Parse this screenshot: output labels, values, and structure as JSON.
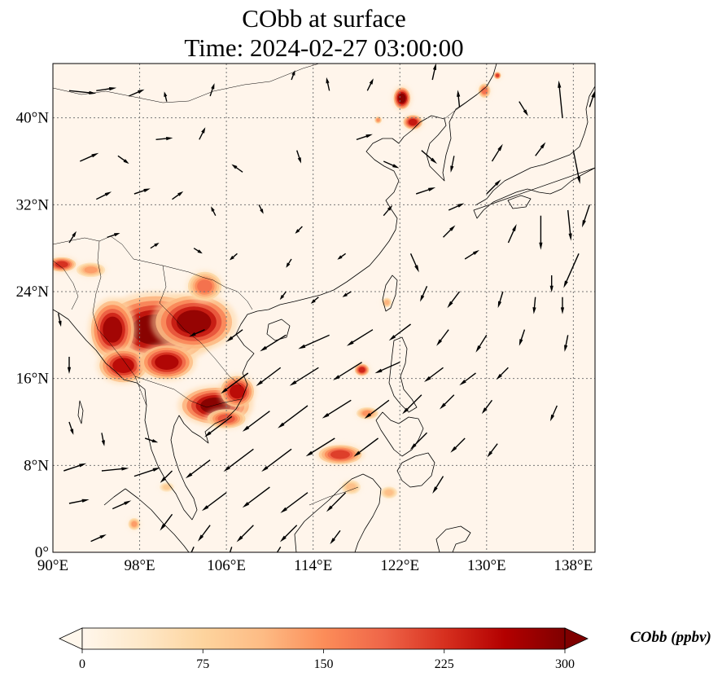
{
  "title": {
    "line1": "CObb at surface",
    "line2": "Time: 2024-02-27 03:00:00"
  },
  "map": {
    "extent": {
      "lon_min": 90,
      "lon_max": 140,
      "lat_min": 0,
      "lat_max": 45
    },
    "lon_ticks": [
      {
        "value": 90,
        "label": "90°E"
      },
      {
        "value": 98,
        "label": "98°E"
      },
      {
        "value": 106,
        "label": "106°E"
      },
      {
        "value": 114,
        "label": "114°E"
      },
      {
        "value": 122,
        "label": "122°E"
      },
      {
        "value": 130,
        "label": "130°E"
      },
      {
        "value": 138,
        "label": "138°E"
      }
    ],
    "lat_ticks": [
      {
        "value": 0,
        "label": "0°"
      },
      {
        "value": 8,
        "label": "8°N"
      },
      {
        "value": 16,
        "label": "16°N"
      },
      {
        "value": 24,
        "label": "24°N"
      },
      {
        "value": 32,
        "label": "32°N"
      },
      {
        "value": 40,
        "label": "40°N"
      }
    ],
    "gridlines": "on",
    "field_name": "CObb",
    "field_units": "ppbv",
    "background_color": "#fff5eb",
    "hotspots": [
      {
        "lon": 99.5,
        "lat": 20.5,
        "r_lon": 4.5,
        "r_lat": 2.8,
        "value": 300
      },
      {
        "lon": 103.0,
        "lat": 21.2,
        "r_lon": 3.2,
        "r_lat": 2.2,
        "value": 290
      },
      {
        "lon": 95.5,
        "lat": 20.5,
        "r_lon": 1.8,
        "r_lat": 2.4,
        "value": 280
      },
      {
        "lon": 96.5,
        "lat": 17.2,
        "r_lon": 2.0,
        "r_lat": 1.4,
        "value": 260
      },
      {
        "lon": 100.5,
        "lat": 17.5,
        "r_lon": 2.2,
        "r_lat": 1.4,
        "value": 270
      },
      {
        "lon": 104.0,
        "lat": 24.5,
        "r_lon": 1.4,
        "r_lat": 1.2,
        "value": 180
      },
      {
        "lon": 105.0,
        "lat": 13.5,
        "r_lon": 2.8,
        "r_lat": 1.5,
        "value": 300
      },
      {
        "lon": 107.0,
        "lat": 14.8,
        "r_lon": 1.4,
        "r_lat": 1.3,
        "value": 260
      },
      {
        "lon": 106.0,
        "lat": 12.3,
        "r_lon": 1.6,
        "r_lat": 0.8,
        "value": 200
      },
      {
        "lon": 90.8,
        "lat": 26.5,
        "r_lon": 1.2,
        "r_lat": 0.6,
        "value": 230
      },
      {
        "lon": 93.5,
        "lat": 26.0,
        "r_lon": 1.2,
        "r_lat": 0.6,
        "value": 140
      },
      {
        "lon": 122.2,
        "lat": 41.8,
        "r_lon": 0.7,
        "r_lat": 0.9,
        "value": 300
      },
      {
        "lon": 123.2,
        "lat": 39.6,
        "r_lon": 0.8,
        "r_lat": 0.6,
        "value": 250
      },
      {
        "lon": 120.0,
        "lat": 39.8,
        "r_lon": 0.3,
        "r_lat": 0.3,
        "value": 150
      },
      {
        "lon": 129.8,
        "lat": 42.5,
        "r_lon": 0.5,
        "r_lat": 0.6,
        "value": 180
      },
      {
        "lon": 131.0,
        "lat": 43.9,
        "r_lon": 0.3,
        "r_lat": 0.3,
        "value": 220
      },
      {
        "lon": 118.5,
        "lat": 16.8,
        "r_lon": 0.6,
        "r_lat": 0.5,
        "value": 240
      },
      {
        "lon": 116.5,
        "lat": 9.0,
        "r_lon": 1.8,
        "r_lat": 0.8,
        "value": 220
      },
      {
        "lon": 119.0,
        "lat": 12.8,
        "r_lon": 0.9,
        "r_lat": 0.5,
        "value": 150
      },
      {
        "lon": 117.5,
        "lat": 6.0,
        "r_lon": 0.8,
        "r_lat": 0.6,
        "value": 110
      },
      {
        "lon": 121.0,
        "lat": 5.5,
        "r_lon": 0.7,
        "r_lat": 0.5,
        "value": 110
      },
      {
        "lon": 97.5,
        "lat": 2.6,
        "r_lon": 0.5,
        "r_lat": 0.5,
        "value": 140
      },
      {
        "lon": 100.5,
        "lat": 6.0,
        "r_lon": 0.6,
        "r_lat": 0.4,
        "value": 90
      },
      {
        "lon": 120.8,
        "lat": 23.0,
        "r_lon": 0.4,
        "r_lat": 0.4,
        "value": 120
      }
    ],
    "wind_vectors": [
      {
        "lon": 91.5,
        "lat": 42.5,
        "u": 1.0,
        "v": -0.1,
        "s": 0.8
      },
      {
        "lon": 94.0,
        "lat": 42.5,
        "u": 0.7,
        "v": 0.1,
        "s": 0.6
      },
      {
        "lon": 97.0,
        "lat": 42.0,
        "u": 0.7,
        "v": 0.3,
        "s": 0.5
      },
      {
        "lon": 100.5,
        "lat": 41.5,
        "u": -0.2,
        "v": 0.8,
        "s": 0.3
      },
      {
        "lon": 104.5,
        "lat": 42.0,
        "u": 0.3,
        "v": 0.9,
        "s": 0.4
      },
      {
        "lon": 112.0,
        "lat": 43.5,
        "u": 0.3,
        "v": 0.8,
        "s": 0.3
      },
      {
        "lon": 115.5,
        "lat": 42.5,
        "u": -0.2,
        "v": 0.9,
        "s": 0.4
      },
      {
        "lon": 119.0,
        "lat": 42.5,
        "u": 0.4,
        "v": 0.8,
        "s": 0.4
      },
      {
        "lon": 125.0,
        "lat": 43.5,
        "u": 0.2,
        "v": 0.9,
        "s": 0.5
      },
      {
        "lon": 127.5,
        "lat": 41.0,
        "u": -0.1,
        "v": 1.0,
        "s": 0.5
      },
      {
        "lon": 133.0,
        "lat": 41.5,
        "u": 0.5,
        "v": -0.8,
        "s": 0.5
      },
      {
        "lon": 137.0,
        "lat": 40.0,
        "u": -0.1,
        "v": 1.0,
        "s": 1.1
      },
      {
        "lon": 139.5,
        "lat": 41.0,
        "u": 0.3,
        "v": 0.9,
        "s": 0.5
      },
      {
        "lon": 92.5,
        "lat": 36.0,
        "u": 0.9,
        "v": 0.4,
        "s": 0.6
      },
      {
        "lon": 96.0,
        "lat": 36.5,
        "u": 0.7,
        "v": -0.5,
        "s": 0.4
      },
      {
        "lon": 99.5,
        "lat": 38.0,
        "u": 1.0,
        "v": 0.1,
        "s": 0.5
      },
      {
        "lon": 103.5,
        "lat": 38.0,
        "u": 0.4,
        "v": 0.8,
        "s": 0.4
      },
      {
        "lon": 107.5,
        "lat": 35.0,
        "u": -0.7,
        "v": 0.5,
        "s": 0.4
      },
      {
        "lon": 112.5,
        "lat": 37.0,
        "u": 0.3,
        "v": -0.9,
        "s": 0.4
      },
      {
        "lon": 118.0,
        "lat": 38.0,
        "u": 0.9,
        "v": 0.3,
        "s": 0.5
      },
      {
        "lon": 120.5,
        "lat": 36.0,
        "u": 0.9,
        "v": -0.4,
        "s": 0.5
      },
      {
        "lon": 124.0,
        "lat": 37.0,
        "u": 0.7,
        "v": -0.6,
        "s": 0.6
      },
      {
        "lon": 127.0,
        "lat": 36.5,
        "u": -0.2,
        "v": -1.0,
        "s": 0.5
      },
      {
        "lon": 130.5,
        "lat": 36.0,
        "u": 0.5,
        "v": 0.8,
        "s": 0.6
      },
      {
        "lon": 134.5,
        "lat": 36.5,
        "u": 0.6,
        "v": 0.8,
        "s": 0.5
      },
      {
        "lon": 138.0,
        "lat": 37.0,
        "u": 0.2,
        "v": -1.0,
        "s": 1.0
      },
      {
        "lon": 94.0,
        "lat": 32.5,
        "u": 0.8,
        "v": 0.4,
        "s": 0.5
      },
      {
        "lon": 97.5,
        "lat": 33.0,
        "u": 0.9,
        "v": 0.3,
        "s": 0.5
      },
      {
        "lon": 101.0,
        "lat": 32.5,
        "u": 0.7,
        "v": 0.5,
        "s": 0.4
      },
      {
        "lon": 105.0,
        "lat": 31.0,
        "u": -0.4,
        "v": 0.8,
        "s": 0.3
      },
      {
        "lon": 109.0,
        "lat": 32.0,
        "u": 0.4,
        "v": -0.8,
        "s": 0.3
      },
      {
        "lon": 113.0,
        "lat": 30.0,
        "u": -0.6,
        "v": -0.6,
        "s": 0.3
      },
      {
        "lon": 120.5,
        "lat": 31.0,
        "u": 0.6,
        "v": 0.7,
        "s": 0.4
      },
      {
        "lon": 123.5,
        "lat": 33.0,
        "u": 0.9,
        "v": 0.3,
        "s": 0.6
      },
      {
        "lon": 126.5,
        "lat": 31.5,
        "u": 0.9,
        "v": 0.4,
        "s": 0.5
      },
      {
        "lon": 130.0,
        "lat": 33.0,
        "u": 0.7,
        "v": 0.7,
        "s": 0.6
      },
      {
        "lon": 135.0,
        "lat": 31.0,
        "u": 0.0,
        "v": -1.0,
        "s": 1.0
      },
      {
        "lon": 137.5,
        "lat": 31.5,
        "u": 0.1,
        "v": -1.0,
        "s": 0.9
      },
      {
        "lon": 139.5,
        "lat": 32.0,
        "u": -0.3,
        "v": -0.9,
        "s": 0.7
      },
      {
        "lon": 91.5,
        "lat": 28.5,
        "u": 0.5,
        "v": 0.8,
        "s": 0.4
      },
      {
        "lon": 95.0,
        "lat": 29.0,
        "u": 0.9,
        "v": 0.3,
        "s": 0.4
      },
      {
        "lon": 99.0,
        "lat": 28.0,
        "u": 0.8,
        "v": 0.5,
        "s": 0.3
      },
      {
        "lon": 103.0,
        "lat": 28.0,
        "u": 0.8,
        "v": -0.5,
        "s": 0.3
      },
      {
        "lon": 107.0,
        "lat": 27.5,
        "u": -0.7,
        "v": -0.6,
        "s": 0.3
      },
      {
        "lon": 112.0,
        "lat": 27.0,
        "u": -0.5,
        "v": -0.8,
        "s": 0.3
      },
      {
        "lon": 117.0,
        "lat": 27.5,
        "u": -0.7,
        "v": -0.5,
        "s": 0.3
      },
      {
        "lon": 123.0,
        "lat": 27.5,
        "u": 0.4,
        "v": -0.9,
        "s": 0.6
      },
      {
        "lon": 126.0,
        "lat": 29.0,
        "u": 0.7,
        "v": 0.7,
        "s": 0.5
      },
      {
        "lon": 128.0,
        "lat": 27.0,
        "u": 0.8,
        "v": 0.5,
        "s": 0.5
      },
      {
        "lon": 132.0,
        "lat": 28.5,
        "u": 0.4,
        "v": 0.9,
        "s": 0.6
      },
      {
        "lon": 136.0,
        "lat": 25.5,
        "u": 0.0,
        "v": -1.0,
        "s": 0.5
      },
      {
        "lon": 138.5,
        "lat": 27.5,
        "u": -0.4,
        "v": -0.9,
        "s": 1.1
      },
      {
        "lon": 90.5,
        "lat": 22.0,
        "u": 0.2,
        "v": -1.0,
        "s": 0.4
      },
      {
        "lon": 111.5,
        "lat": 24.0,
        "u": -0.6,
        "v": -0.8,
        "s": 0.3
      },
      {
        "lon": 114.5,
        "lat": 23.5,
        "u": -0.7,
        "v": -0.6,
        "s": 0.3
      },
      {
        "lon": 117.5,
        "lat": 24.0,
        "u": -0.8,
        "v": -0.5,
        "s": 0.3
      },
      {
        "lon": 124.5,
        "lat": 24.5,
        "u": -0.4,
        "v": -0.9,
        "s": 0.5
      },
      {
        "lon": 127.5,
        "lat": 24.0,
        "u": -0.6,
        "v": -0.8,
        "s": 0.6
      },
      {
        "lon": 131.5,
        "lat": 24.0,
        "u": -0.3,
        "v": -1.0,
        "s": 0.5
      },
      {
        "lon": 134.5,
        "lat": 23.5,
        "u": -0.1,
        "v": -1.0,
        "s": 0.5
      },
      {
        "lon": 137.0,
        "lat": 23.5,
        "u": 0.0,
        "v": -1.0,
        "s": 0.5
      },
      {
        "lon": 104.0,
        "lat": 20.5,
        "u": -0.9,
        "v": -0.4,
        "s": 0.5
      },
      {
        "lon": 107.5,
        "lat": 20.5,
        "u": -0.8,
        "v": -0.6,
        "s": 0.6
      },
      {
        "lon": 111.5,
        "lat": 20.0,
        "u": -0.8,
        "v": -0.5,
        "s": 0.9
      },
      {
        "lon": 115.5,
        "lat": 20.0,
        "u": -0.9,
        "v": -0.4,
        "s": 1.0
      },
      {
        "lon": 119.5,
        "lat": 20.5,
        "u": -0.8,
        "v": -0.5,
        "s": 0.9
      },
      {
        "lon": 123.0,
        "lat": 21.0,
        "u": -0.8,
        "v": -0.6,
        "s": 0.8
      },
      {
        "lon": 126.5,
        "lat": 20.5,
        "u": -0.6,
        "v": -0.8,
        "s": 0.6
      },
      {
        "lon": 130.0,
        "lat": 20.0,
        "u": -0.5,
        "v": -0.8,
        "s": 0.6
      },
      {
        "lon": 133.5,
        "lat": 20.5,
        "u": -0.3,
        "v": -0.9,
        "s": 0.5
      },
      {
        "lon": 137.5,
        "lat": 20.0,
        "u": -0.2,
        "v": -1.0,
        "s": 0.5
      },
      {
        "lon": 91.5,
        "lat": 18.0,
        "u": 0.0,
        "v": -1.0,
        "s": 0.5
      },
      {
        "lon": 108.0,
        "lat": 16.5,
        "u": -0.8,
        "v": -0.6,
        "s": 1.0
      },
      {
        "lon": 111.0,
        "lat": 17.0,
        "u": -0.8,
        "v": -0.6,
        "s": 0.9
      },
      {
        "lon": 114.5,
        "lat": 17.0,
        "u": -0.8,
        "v": -0.5,
        "s": 1.0
      },
      {
        "lon": 118.5,
        "lat": 17.5,
        "u": -0.8,
        "v": -0.5,
        "s": 1.0
      },
      {
        "lon": 122.0,
        "lat": 17.5,
        "u": -0.9,
        "v": -0.4,
        "s": 0.8
      },
      {
        "lon": 126.0,
        "lat": 17.0,
        "u": -0.8,
        "v": -0.6,
        "s": 0.7
      },
      {
        "lon": 129.0,
        "lat": 16.5,
        "u": -0.8,
        "v": -0.6,
        "s": 0.6
      },
      {
        "lon": 132.0,
        "lat": 17.0,
        "u": -0.7,
        "v": -0.7,
        "s": 0.5
      },
      {
        "lon": 106.5,
        "lat": 12.5,
        "u": -0.8,
        "v": -0.6,
        "s": 1.0
      },
      {
        "lon": 110.0,
        "lat": 13.0,
        "u": -0.8,
        "v": -0.6,
        "s": 1.0
      },
      {
        "lon": 113.5,
        "lat": 13.5,
        "u": -0.8,
        "v": -0.6,
        "s": 1.1
      },
      {
        "lon": 117.5,
        "lat": 14.0,
        "u": -0.8,
        "v": -0.5,
        "s": 1.0
      },
      {
        "lon": 121.0,
        "lat": 14.0,
        "u": -0.8,
        "v": -0.6,
        "s": 0.9
      },
      {
        "lon": 124.0,
        "lat": 14.5,
        "u": -0.7,
        "v": -0.7,
        "s": 0.8
      },
      {
        "lon": 127.0,
        "lat": 14.5,
        "u": -0.7,
        "v": -0.7,
        "s": 0.6
      },
      {
        "lon": 130.5,
        "lat": 14.0,
        "u": -0.6,
        "v": -0.8,
        "s": 0.5
      },
      {
        "lon": 136.5,
        "lat": 13.5,
        "u": -0.4,
        "v": -0.9,
        "s": 0.5
      },
      {
        "lon": 91.5,
        "lat": 12.0,
        "u": 0.3,
        "v": -0.9,
        "s": 0.4
      },
      {
        "lon": 94.5,
        "lat": 11.0,
        "u": 0.2,
        "v": -1.0,
        "s": 0.4
      },
      {
        "lon": 98.5,
        "lat": 10.5,
        "u": 0.9,
        "v": -0.3,
        "s": 0.4
      },
      {
        "lon": 104.5,
        "lat": 8.5,
        "u": -0.8,
        "v": -0.6,
        "s": 0.9
      },
      {
        "lon": 108.5,
        "lat": 9.5,
        "u": -0.8,
        "v": -0.6,
        "s": 1.1
      },
      {
        "lon": 112.0,
        "lat": 9.5,
        "u": -0.8,
        "v": -0.6,
        "s": 1.1
      },
      {
        "lon": 116.0,
        "lat": 10.5,
        "u": -0.8,
        "v": -0.5,
        "s": 1.0
      },
      {
        "lon": 120.0,
        "lat": 10.5,
        "u": -0.8,
        "v": -0.6,
        "s": 0.9
      },
      {
        "lon": 124.5,
        "lat": 11.0,
        "u": -0.7,
        "v": -0.7,
        "s": 0.7
      },
      {
        "lon": 128.0,
        "lat": 10.5,
        "u": -0.7,
        "v": -0.7,
        "s": 0.6
      },
      {
        "lon": 131.0,
        "lat": 10.0,
        "u": -0.6,
        "v": -0.8,
        "s": 0.5
      },
      {
        "lon": 91.0,
        "lat": 7.5,
        "u": 0.9,
        "v": 0.3,
        "s": 0.7
      },
      {
        "lon": 94.5,
        "lat": 7.5,
        "u": 1.0,
        "v": 0.1,
        "s": 0.8
      },
      {
        "lon": 97.5,
        "lat": 7.0,
        "u": 0.9,
        "v": 0.3,
        "s": 0.8
      },
      {
        "lon": 101.0,
        "lat": 7.5,
        "u": -0.7,
        "v": -0.7,
        "s": 0.5
      },
      {
        "lon": 106.0,
        "lat": 5.5,
        "u": -0.8,
        "v": -0.6,
        "s": 0.9
      },
      {
        "lon": 110.0,
        "lat": 6.0,
        "u": -0.8,
        "v": -0.6,
        "s": 1.0
      },
      {
        "lon": 113.5,
        "lat": 5.5,
        "u": -0.8,
        "v": -0.6,
        "s": 1.0
      },
      {
        "lon": 117.0,
        "lat": 5.5,
        "u": -0.7,
        "v": -0.7,
        "s": 0.8
      },
      {
        "lon": 126.0,
        "lat": 7.0,
        "u": -0.5,
        "v": -0.8,
        "s": 0.6
      },
      {
        "lon": 91.5,
        "lat": 4.5,
        "u": 1.0,
        "v": 0.2,
        "s": 0.6
      },
      {
        "lon": 95.5,
        "lat": 4.0,
        "u": 0.9,
        "v": 0.4,
        "s": 0.6
      },
      {
        "lon": 101.0,
        "lat": 3.5,
        "u": -0.6,
        "v": -0.8,
        "s": 0.6
      },
      {
        "lon": 104.5,
        "lat": 2.5,
        "u": -0.6,
        "v": -0.8,
        "s": 0.6
      },
      {
        "lon": 108.5,
        "lat": 2.5,
        "u": -0.7,
        "v": -0.7,
        "s": 0.7
      },
      {
        "lon": 112.5,
        "lat": 2.5,
        "u": -0.7,
        "v": -0.7,
        "s": 0.7
      },
      {
        "lon": 116.5,
        "lat": 2.0,
        "u": -0.6,
        "v": -0.8,
        "s": 0.5
      },
      {
        "lon": 93.5,
        "lat": 1.0,
        "u": 0.9,
        "v": 0.4,
        "s": 0.5
      },
      {
        "lon": 103.0,
        "lat": 0.5,
        "u": -0.4,
        "v": -0.9,
        "s": 0.5
      },
      {
        "lon": 106.5,
        "lat": 0.5,
        "u": -0.3,
        "v": -0.9,
        "s": 0.5
      },
      {
        "lon": 111.0,
        "lat": 0.5,
        "u": -0.5,
        "v": -0.8,
        "s": 0.5
      }
    ]
  },
  "colorbar": {
    "ticks": [
      {
        "value": 0,
        "label": "0"
      },
      {
        "value": 75,
        "label": "75"
      },
      {
        "value": 150,
        "label": "150"
      },
      {
        "value": 225,
        "label": "225"
      },
      {
        "value": 300,
        "label": "300"
      }
    ],
    "min": 0,
    "max": 300,
    "extend": "both",
    "colormap": "OrRd",
    "colors": [
      "#fff7ec",
      "#fee8c8",
      "#fdd49e",
      "#fdbb84",
      "#fc8d59",
      "#ef6548",
      "#d7301f",
      "#b30000",
      "#7f0000"
    ],
    "label": "CObb (ppbv)"
  }
}
